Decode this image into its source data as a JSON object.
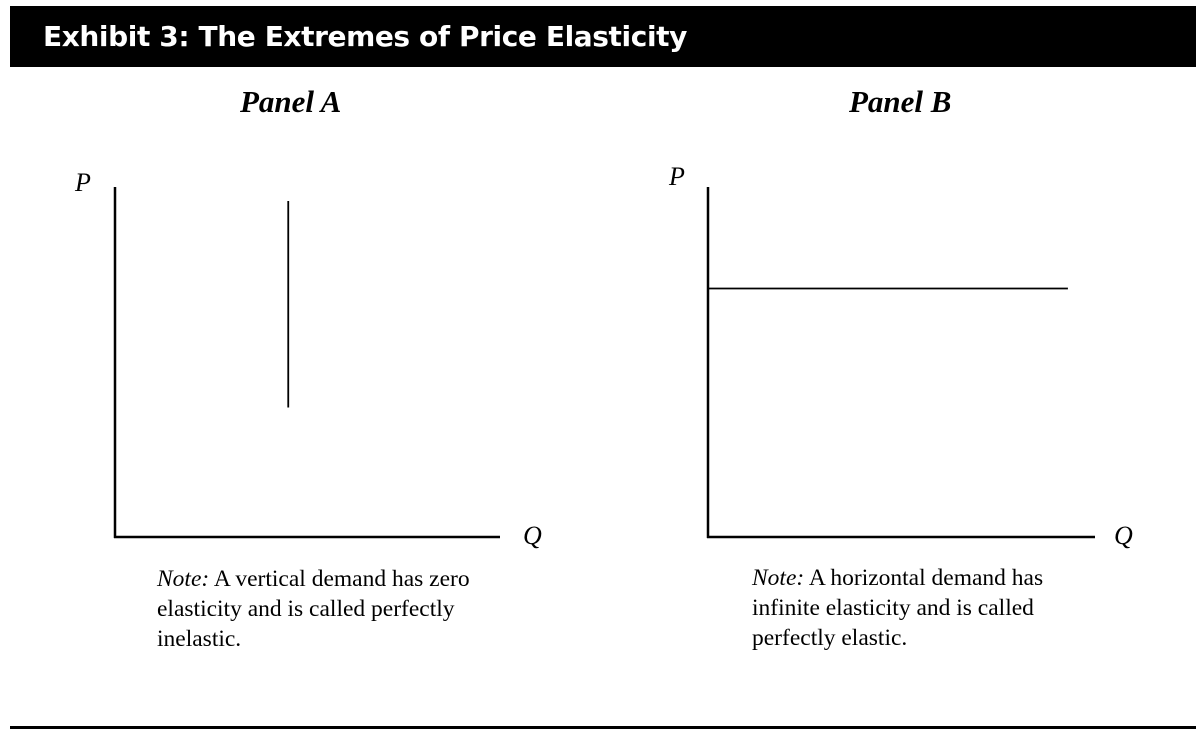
{
  "header": {
    "title": "Exhibit 3: The Extremes of Price Elasticity"
  },
  "chart_data": [
    {
      "type": "line",
      "panel": "Panel A",
      "title": "Panel A",
      "xlabel": "Q",
      "ylabel": "P",
      "grid": false,
      "curve": "vertical demand",
      "series": [
        {
          "name": "",
          "x": [
            0.45,
            0.45
          ],
          "y": [
            0.37,
            0.96
          ]
        }
      ],
      "xlim": [
        0,
        1
      ],
      "ylim": [
        0,
        1
      ],
      "note_lead": "Note:",
      "note_text": "A vertical demand has zero elasticity and is called perfectly inelastic."
    },
    {
      "type": "line",
      "panel": "Panel B",
      "title": "Panel B",
      "xlabel": "Q",
      "ylabel": "P",
      "grid": false,
      "curve": "horizontal demand",
      "series": [
        {
          "name": "",
          "x": [
            0.0,
            0.93
          ],
          "y": [
            0.71,
            0.71
          ]
        }
      ],
      "xlim": [
        0,
        1
      ],
      "ylim": [
        0,
        1
      ],
      "note_lead": "Note:",
      "note_text": "A horizontal demand has infinite elasticity and is called perfectly elastic."
    }
  ]
}
